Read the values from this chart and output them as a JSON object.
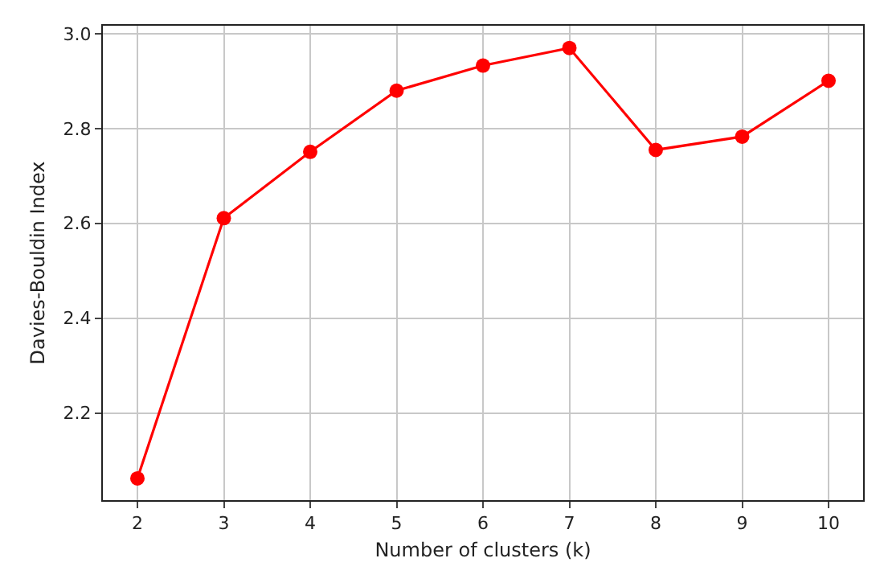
{
  "chart_data": {
    "type": "line",
    "xlabel": "Number of clusters (k)",
    "ylabel": "Davies-Bouldin Index",
    "x": [
      2,
      3,
      4,
      5,
      6,
      7,
      8,
      9,
      10
    ],
    "series": [
      {
        "color": "#ff0000",
        "values": [
          2.062,
          2.611,
          2.751,
          2.88,
          2.933,
          2.97,
          2.755,
          2.783,
          2.901
        ]
      }
    ],
    "xlim": [
      1.6,
      10.4
    ],
    "xticks": [
      2,
      3,
      4,
      5,
      6,
      7,
      8,
      9,
      10
    ],
    "ylim": [
      2.016,
      3.017
    ],
    "yticks": [
      2.2,
      2.4,
      2.6,
      2.8,
      {
        "value": 3,
        "label": "3.0"
      }
    ],
    "grid": true,
    "marker": "circle",
    "line_style": "solid"
  }
}
